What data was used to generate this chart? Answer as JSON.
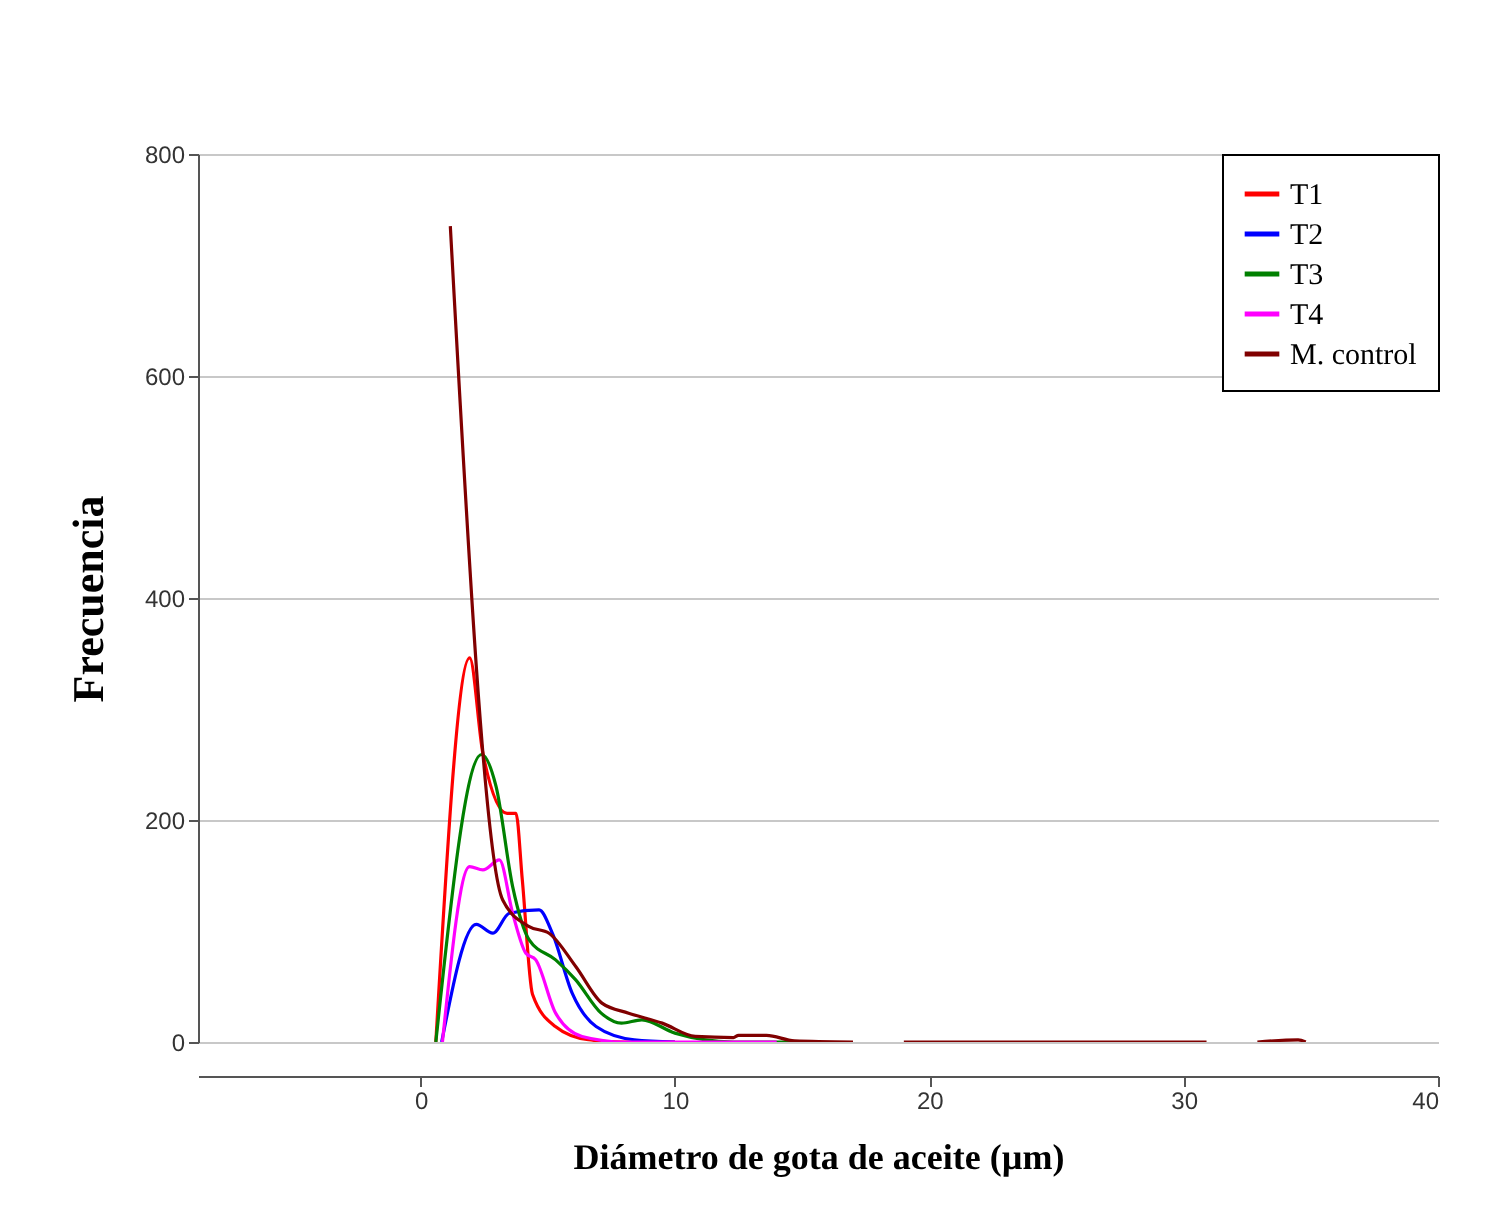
{
  "chart_data": {
    "type": "line",
    "xlabel": "Diámetro de gota de aceite (µm)",
    "ylabel": "Frecuencia",
    "xlim": [
      -8.75,
      40
    ],
    "xticks": [
      0,
      10,
      20,
      30,
      40
    ],
    "ylim": [
      0,
      800
    ],
    "yticks": [
      0,
      200,
      400,
      600,
      800
    ],
    "grid": "y",
    "legend": "top right",
    "marker": "none",
    "line_style": "solid",
    "series": [
      {
        "name": "T1",
        "color": "#ff0000",
        "x": [
          0.6,
          1.93,
          2.45,
          3.4,
          3.75,
          4.0,
          4.4,
          5.3,
          6.6,
          8.0,
          10.0
        ],
        "values": [
          0,
          346,
          260,
          206,
          206,
          146,
          43,
          14,
          2,
          0,
          0
        ]
      },
      {
        "name": "T2",
        "color": "#0000ff",
        "x": [
          0.83,
          2.19,
          2.84,
          3.49,
          4.66,
          5.18,
          5.96,
          6.9,
          8.4,
          10.0
        ],
        "values": [
          0,
          106,
          98,
          116,
          119,
          98,
          44,
          14,
          2,
          0
        ]
      },
      {
        "name": "T3",
        "color": "#008000",
        "x": [
          0.6,
          2.4,
          2.97,
          3.62,
          4.27,
          5.31,
          6.1,
          7.1,
          7.9,
          8.7,
          10.0,
          12.3,
          15.5
        ],
        "values": [
          0,
          259,
          230,
          140,
          92,
          74,
          56,
          26,
          17,
          20,
          8,
          0,
          0
        ]
      },
      {
        "name": "T4",
        "color": "#ff00ff",
        "x": [
          0.86,
          1.93,
          2.45,
          3.1,
          3.62,
          4.14,
          4.53,
          5.31,
          6.35,
          8.0,
          14.0
        ],
        "values": [
          0,
          158,
          155,
          164,
          116,
          80,
          74,
          26,
          5,
          0,
          0
        ]
      },
      {
        "name": "M. control",
        "color": "#800000",
        "x": [
          1.17,
          3.23,
          4.27,
          5.05,
          6.1,
          7.13,
          8.18,
          9.5,
          10.8,
          12.3,
          12.5,
          13.6,
          14.7,
          17.0,
          18.0,
          19.0,
          30.9,
          32.0,
          32.9,
          34.5,
          34.8
        ],
        "values": [
          735,
          128,
          104,
          98,
          68,
          35,
          26,
          17,
          5,
          4,
          6,
          6,
          1,
          0,
          null,
          0,
          0,
          null,
          0,
          2,
          0
        ]
      }
    ]
  }
}
